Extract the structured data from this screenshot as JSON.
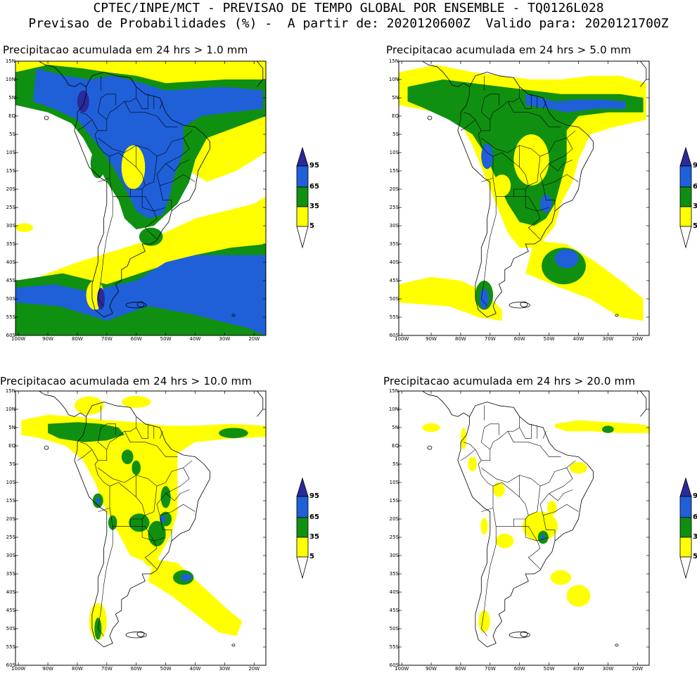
{
  "header": {
    "line1": "CPTEC/INPE/MCT - PREVISAO DE TEMPO GLOBAL POR ENSEMBLE - TQ0126L028",
    "line2": "Previsao de Probabilidades (%) -  A partir de: 2020120600Z  Valido para: 2020121700Z"
  },
  "colors": {
    "c5": "#ffff00",
    "c35": "#109010",
    "c65": "#1f5fd8",
    "c95": "#2a2a9a"
  },
  "lat_labels": [
    "15N",
    "10N",
    "5N",
    "EQ",
    "5S",
    "10S",
    "15S",
    "20S",
    "25S",
    "30S",
    "35S",
    "40S",
    "45S",
    "50S",
    "55S",
    "60S"
  ],
  "lon_labels": [
    "100W",
    "90W",
    "80W",
    "70W",
    "60W",
    "50W",
    "40W",
    "30W",
    "20W"
  ],
  "legend_labels": [
    "95",
    "65",
    "35",
    "5"
  ],
  "panels": [
    {
      "title": "Precipitacao acumulada em 24 hrs > 1.0 mm"
    },
    {
      "title": "Precipitacao acumulada em 24 hrs > 5.0 mm"
    },
    {
      "title": "Precipitacao acumulada em 24 hrs > 10.0 mm"
    },
    {
      "title": "Precipitacao acumulada em 24 hrs > 20.0 mm"
    }
  ]
}
